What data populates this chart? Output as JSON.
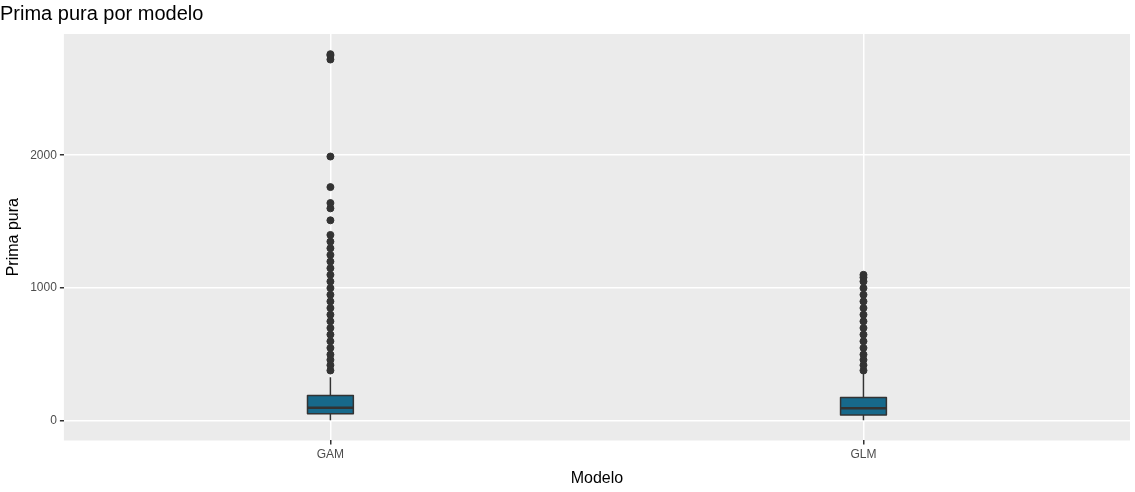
{
  "chart_data": {
    "type": "box",
    "title": "Prima pura por modelo",
    "xlabel": "Modelo",
    "ylabel": "Prima pura",
    "categories": [
      "GAM",
      "GLM"
    ],
    "boxes": [
      {
        "low": 5,
        "q1": 54,
        "median": 100,
        "q3": 192,
        "high": 330,
        "outliers": [
          380,
          420,
          460,
          500,
          550,
          600,
          650,
          700,
          750,
          800,
          850,
          900,
          950,
          1000,
          1050,
          1100,
          1150,
          1200,
          1250,
          1300,
          1350,
          1400,
          1510,
          1600,
          1640,
          1760,
          1990,
          2720,
          2750,
          2760
        ]
      },
      {
        "low": 5,
        "q1": 46,
        "median": 95,
        "q3": 176,
        "high": 360,
        "outliers": [
          380,
          420,
          460,
          500,
          550,
          600,
          650,
          700,
          750,
          800,
          850,
          900,
          950,
          1000,
          1050,
          1080,
          1100
        ]
      }
    ],
    "color": "#17698b",
    "ylim": [
      -146,
      2912
    ],
    "yticks": [
      0,
      1000,
      2000
    ],
    "grid": true
  }
}
